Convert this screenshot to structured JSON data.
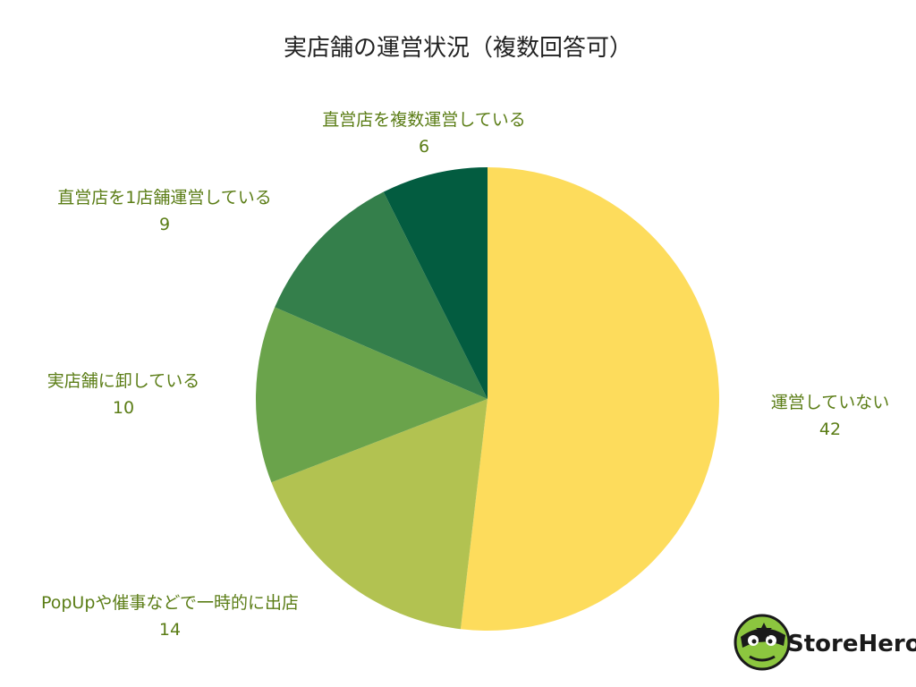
{
  "chart_data": {
    "type": "pie",
    "title": "実店舗の運営状況（複数回答可）",
    "slices": [
      {
        "label": "運営していない",
        "value": 42,
        "color": "#fddc5c"
      },
      {
        "label": "PopUpや催事などで一時的に出店",
        "value": 14,
        "color": "#b2c251"
      },
      {
        "label": "実店舗に卸している",
        "value": 10,
        "color": "#6aa34b"
      },
      {
        "label": "直営店を1店舗運営している",
        "value": 9,
        "color": "#347f4b"
      },
      {
        "label": "直営店を複数運営している",
        "value": 6,
        "color": "#035c40"
      }
    ],
    "start_angle_deg": 0,
    "direction": "clockwise",
    "legend": "none",
    "label_color": "#5b7d16"
  },
  "logo": {
    "text": "StoreHero",
    "icon": "turtle-hero-mascot-icon",
    "mascot_color": "#8cc63f"
  }
}
